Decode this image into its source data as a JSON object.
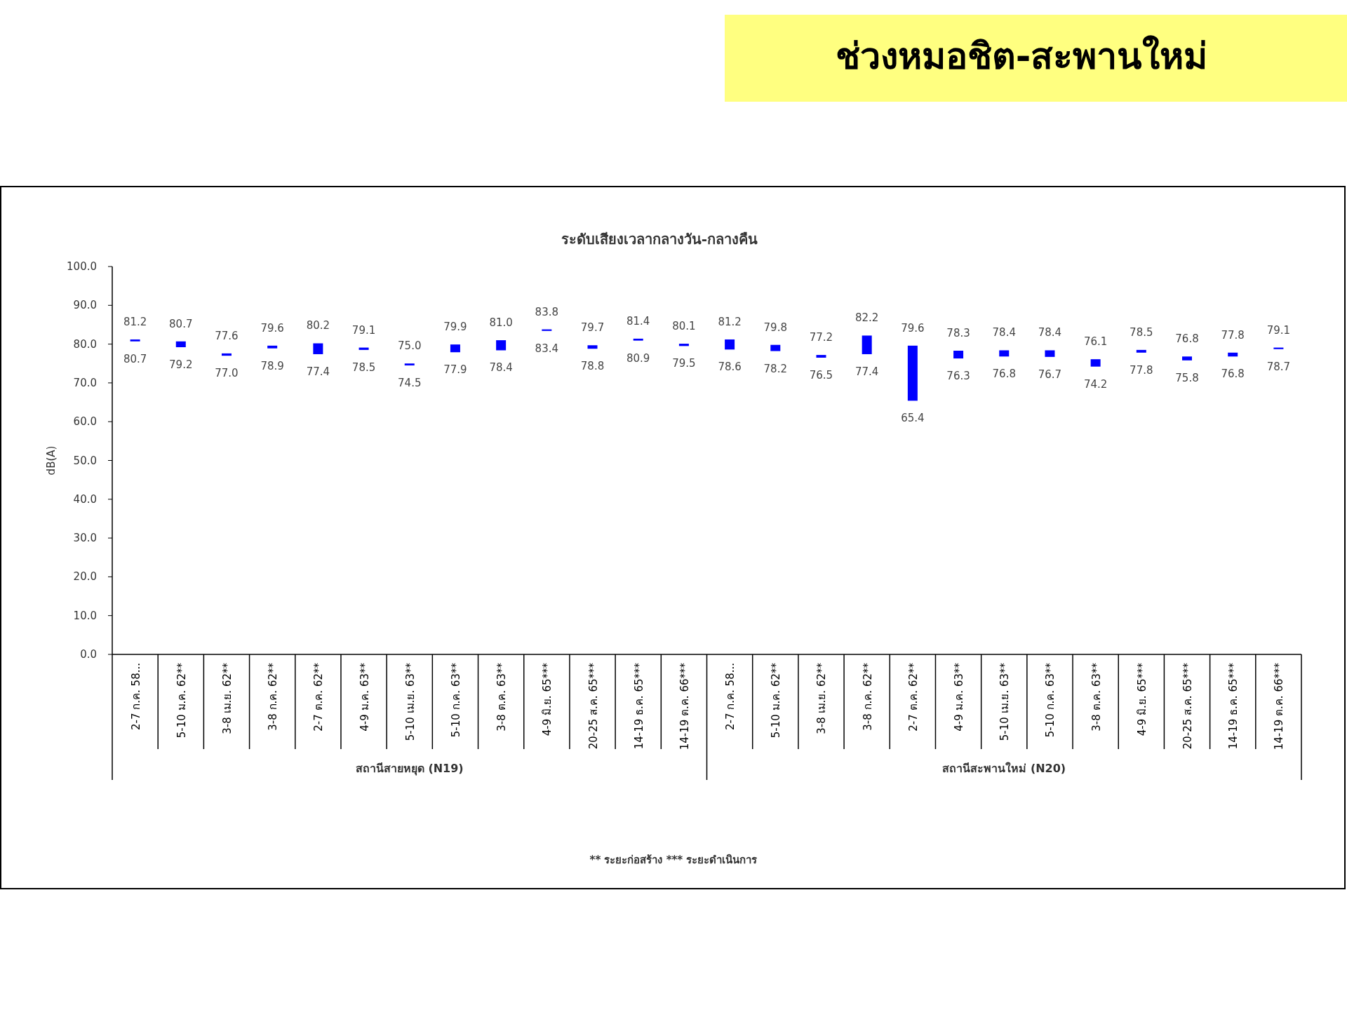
{
  "chart_data": {
    "type": "bar",
    "title": "ช่วงหมอชิต-สะพานใหม่",
    "subtitle": "ระดับเสียงเวลากลางวัน-กลางคืน",
    "ylabel": "dB(A)",
    "categories": [
      "2-7 ก.ค. 58...",
      "5-10 ม.ค. 62**",
      "3-8 เม.ย. 62**",
      "3-8 ก.ค. 62**",
      "2-7 ต.ค. 62**",
      "4-9 ม.ค. 63**",
      "5-10 เม.ย. 63**",
      "5-10 ก.ค. 63**",
      "3-8 ต.ค. 63**",
      "4-9 มิ.ย. 65***",
      "20-25 ส.ค. 65***",
      "14-19 ธ.ค. 65***",
      "14-19 ต.ค. 66***",
      "2-7 ก.ค. 58...",
      "5-10 ม.ค. 62**",
      "3-8 เม.ย. 62**",
      "3-8 ก.ค. 62**",
      "2-7 ต.ค. 62**",
      "4-9 ม.ค. 63**",
      "5-10 เม.ย. 63**",
      "5-10 ก.ค. 63**",
      "3-8 ต.ค. 63**",
      "4-9 มิ.ย. 65***",
      "20-25 ส.ค. 65***",
      "14-19 ธ.ค. 65***",
      "14-19 ต.ค. 66***"
    ],
    "base": [
      80.7,
      79.2,
      77.0,
      78.9,
      77.4,
      78.5,
      74.5,
      77.9,
      78.4,
      83.4,
      78.8,
      80.9,
      79.5,
      78.6,
      78.2,
      76.5,
      77.4,
      65.4,
      76.3,
      76.8,
      76.7,
      74.2,
      77.8,
      75.8,
      76.8,
      78.7
    ],
    "values": [
      0.5,
      1.5,
      0.6,
      0.7,
      2.8,
      0.6,
      0.5,
      2.0,
      2.6,
      0.4,
      0.9,
      0.5,
      0.6,
      2.6,
      1.6,
      0.7,
      4.8,
      14.2,
      2.0,
      1.6,
      1.7,
      1.9,
      0.7,
      1.0,
      1.0,
      0.4
    ],
    "value_labels": [
      [
        "81.2",
        "80.7"
      ],
      [
        "80.7",
        "79.2"
      ],
      [
        "77.6",
        "77.0"
      ],
      [
        "79.6",
        "78.9"
      ],
      [
        "80.2",
        "77.4"
      ],
      [
        "79.1",
        "78.5"
      ],
      [
        "75.0",
        "74.5"
      ],
      [
        "79.9",
        "77.9"
      ],
      [
        "81.0",
        "78.4"
      ],
      [
        "83.8",
        "83.4"
      ],
      [
        "79.7",
        "78.8"
      ],
      [
        "81.4",
        "80.9"
      ],
      [
        "80.1",
        "79.5"
      ],
      [
        "81.2",
        "78.6"
      ],
      [
        "79.8",
        "78.2"
      ],
      [
        "77.2",
        "76.5"
      ],
      [
        "82.2",
        "77.4"
      ],
      [
        "79.6",
        "65.4"
      ],
      [
        "78.3",
        "76.3"
      ],
      [
        "78.4",
        "76.8"
      ],
      [
        "78.4",
        "76.7"
      ],
      [
        "76.1",
        "74.2"
      ],
      [
        "78.5",
        "77.8"
      ],
      [
        "76.8",
        "75.8"
      ],
      [
        "77.8",
        "76.8"
      ],
      [
        "79.1",
        "78.7"
      ]
    ],
    "color": "#0000ff",
    "ylim": [
      0,
      100
    ],
    "yticks": [
      {
        "value": 0,
        "label": "0.0"
      },
      {
        "value": 10,
        "label": "10.0"
      },
      {
        "value": 20,
        "label": "20.0"
      },
      {
        "value": 30,
        "label": "30.0"
      },
      {
        "value": 40,
        "label": "40.0"
      },
      {
        "value": 50,
        "label": "50.0"
      },
      {
        "value": 60,
        "label": "60.0"
      },
      {
        "value": 70,
        "label": "70.0"
      },
      {
        "value": 80,
        "label": "80.0"
      },
      {
        "value": 90,
        "label": "90.0"
      },
      {
        "value": 100,
        "label": "100.0"
      }
    ],
    "annotations": [
      "สถานีสายหยุด (N19)",
      "สถานีสะพานใหม่ (N20)",
      "** ระยะก่อสร้าง    *** ระยะดำเนินการ"
    ]
  }
}
